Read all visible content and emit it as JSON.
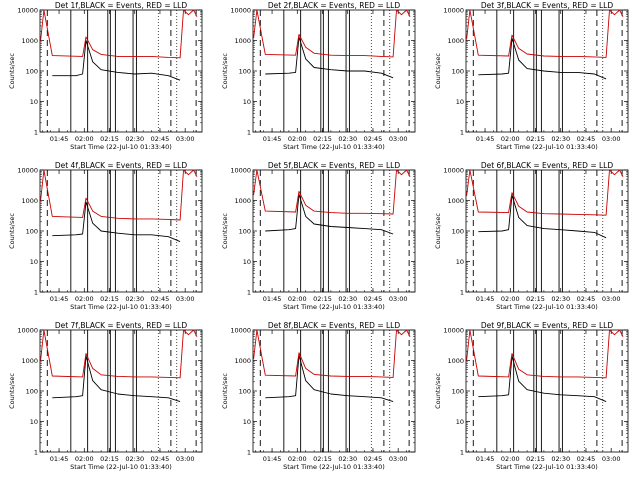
{
  "chart_data": [
    {
      "type": "line",
      "title": "Det 1f,BLACK = Events, RED = LLD",
      "xlabel": "Start Time (22-Jul-10 01:33:40)",
      "ylabel": "Counts/sec",
      "x_tick_labels": [
        "01:45",
        "02:00",
        "02:15",
        "02:30",
        "02:45",
        "03:00"
      ],
      "y_tick_labels": [
        "1",
        "10",
        "100",
        "1000",
        "10000"
      ],
      "ylim": [
        1,
        10000
      ],
      "yscale": "log",
      "series": [
        {
          "name": "Events",
          "color": "#000000",
          "x": [
            "01:41",
            "01:55",
            "01:59",
            "02:01",
            "02:05",
            "02:10",
            "02:20",
            "02:30",
            "02:40",
            "02:50",
            "02:57"
          ],
          "y": [
            70,
            70,
            80,
            1000,
            200,
            110,
            90,
            80,
            85,
            70,
            50
          ]
        },
        {
          "name": "LLD",
          "color": "#cc0000",
          "x": [
            "01:34",
            "01:36",
            "01:41",
            "01:59",
            "02:01",
            "02:05",
            "02:10",
            "02:20",
            "02:30",
            "02:40",
            "02:50",
            "02:57",
            "02:59",
            "03:02",
            "03:05",
            "03:07"
          ],
          "y": [
            1000,
            10000,
            320,
            300,
            1300,
            500,
            350,
            300,
            300,
            300,
            280,
            270,
            10000,
            7000,
            10000,
            6000
          ]
        }
      ]
    },
    {
      "type": "line",
      "title": "Det 2f,BLACK = Events, RED = LLD",
      "xlabel": "Start Time (22-Jul-10 01:33:40)",
      "ylabel": "Counts/sec",
      "x_tick_labels": [
        "01:45",
        "02:00",
        "02:15",
        "02:30",
        "02:45",
        "03:00"
      ],
      "y_tick_labels": [
        "1",
        "10",
        "100",
        "1000",
        "10000"
      ],
      "ylim": [
        1,
        10000
      ],
      "yscale": "log",
      "series": [
        {
          "name": "Events",
          "color": "#000000",
          "x": [
            "01:41",
            "01:55",
            "01:59",
            "02:01",
            "02:05",
            "02:10",
            "02:20",
            "02:30",
            "02:40",
            "02:50",
            "02:57"
          ],
          "y": [
            80,
            85,
            90,
            1300,
            250,
            130,
            110,
            100,
            100,
            85,
            60
          ]
        },
        {
          "name": "LLD",
          "color": "#cc0000",
          "x": [
            "01:34",
            "01:36",
            "01:41",
            "01:59",
            "02:01",
            "02:05",
            "02:10",
            "02:20",
            "02:30",
            "02:40",
            "02:50",
            "02:57",
            "02:59",
            "03:02",
            "03:05",
            "03:07"
          ],
          "y": [
            1200,
            10000,
            350,
            330,
            1600,
            600,
            380,
            330,
            320,
            320,
            300,
            290,
            10000,
            7000,
            10000,
            6000
          ]
        }
      ]
    },
    {
      "type": "line",
      "title": "Det 3f,BLACK = Events, RED = LLD",
      "xlabel": "Start Time (22-Jul-10 01:33:40)",
      "ylabel": "Counts/sec",
      "x_tick_labels": [
        "01:45",
        "02:00",
        "02:15",
        "02:30",
        "02:45",
        "03:00"
      ],
      "y_tick_labels": [
        "1",
        "10",
        "100",
        "1000",
        "10000"
      ],
      "ylim": [
        1,
        10000
      ],
      "yscale": "log",
      "series": [
        {
          "name": "Events",
          "color": "#000000",
          "x": [
            "01:41",
            "01:55",
            "01:59",
            "02:01",
            "02:05",
            "02:10",
            "02:20",
            "02:30",
            "02:40",
            "02:50",
            "02:57"
          ],
          "y": [
            75,
            80,
            85,
            1200,
            230,
            120,
            100,
            90,
            90,
            80,
            55
          ]
        },
        {
          "name": "LLD",
          "color": "#cc0000",
          "x": [
            "01:34",
            "01:36",
            "01:41",
            "01:59",
            "02:01",
            "02:05",
            "02:10",
            "02:20",
            "02:30",
            "02:40",
            "02:50",
            "02:57",
            "02:59",
            "03:02",
            "03:05",
            "03:07"
          ],
          "y": [
            1100,
            10000,
            330,
            310,
            1500,
            550,
            360,
            310,
            300,
            300,
            290,
            280,
            10000,
            7000,
            10000,
            6000
          ]
        }
      ]
    },
    {
      "type": "line",
      "title": "Det 4f,BLACK = Events, RED = LLD",
      "xlabel": "Start Time (22-Jul-10 01:33:40)",
      "ylabel": "Counts/sec",
      "x_tick_labels": [
        "01:45",
        "02:00",
        "02:15",
        "02:30",
        "02:45",
        "03:00"
      ],
      "y_tick_labels": [
        "1",
        "10",
        "100",
        "1000",
        "10000"
      ],
      "ylim": [
        1,
        10000
      ],
      "yscale": "log",
      "series": [
        {
          "name": "Events",
          "color": "#000000",
          "x": [
            "01:41",
            "01:55",
            "01:59",
            "02:01",
            "02:05",
            "02:10",
            "02:20",
            "02:30",
            "02:40",
            "02:50",
            "02:57"
          ],
          "y": [
            70,
            75,
            80,
            900,
            180,
            100,
            85,
            75,
            75,
            65,
            45
          ]
        },
        {
          "name": "LLD",
          "color": "#cc0000",
          "x": [
            "01:34",
            "01:36",
            "01:41",
            "01:59",
            "02:01",
            "02:05",
            "02:10",
            "02:20",
            "02:30",
            "02:40",
            "02:50",
            "02:57",
            "02:59",
            "03:02",
            "03:05",
            "03:07"
          ],
          "y": [
            1000,
            10000,
            300,
            280,
            1200,
            450,
            300,
            260,
            250,
            250,
            240,
            230,
            10000,
            7000,
            10000,
            6000
          ]
        }
      ]
    },
    {
      "type": "line",
      "title": "Det 5f,BLACK = Events, RED = LLD",
      "xlabel": "Start Time (22-Jul-10 01:33:40)",
      "ylabel": "Counts/sec",
      "x_tick_labels": [
        "01:45",
        "02:00",
        "02:15",
        "02:30",
        "02:45",
        "03:00"
      ],
      "y_tick_labels": [
        "1",
        "10",
        "100",
        "1000",
        "10000"
      ],
      "ylim": [
        1,
        10000
      ],
      "yscale": "log",
      "series": [
        {
          "name": "Events",
          "color": "#000000",
          "x": [
            "01:41",
            "01:55",
            "01:59",
            "02:01",
            "02:05",
            "02:10",
            "02:20",
            "02:30",
            "02:40",
            "02:50",
            "02:57"
          ],
          "y": [
            100,
            110,
            120,
            1600,
            300,
            170,
            140,
            130,
            120,
            110,
            80
          ]
        },
        {
          "name": "LLD",
          "color": "#cc0000",
          "x": [
            "01:34",
            "01:36",
            "01:41",
            "01:59",
            "02:01",
            "02:05",
            "02:10",
            "02:20",
            "02:30",
            "02:40",
            "02:50",
            "02:57",
            "02:59",
            "03:02",
            "03:05",
            "03:07"
          ],
          "y": [
            1500,
            10000,
            450,
            420,
            2000,
            700,
            450,
            400,
            380,
            380,
            370,
            360,
            10000,
            7000,
            10000,
            6000
          ]
        }
      ]
    },
    {
      "type": "line",
      "title": "Det 6f,BLACK = Events, RED = LLD",
      "xlabel": "Start Time (22-Jul-10 01:33:40)",
      "ylabel": "Counts/sec",
      "x_tick_labels": [
        "01:45",
        "02:00",
        "02:15",
        "02:30",
        "02:45",
        "03:00"
      ],
      "y_tick_labels": [
        "1",
        "10",
        "100",
        "1000",
        "10000"
      ],
      "ylim": [
        1,
        10000
      ],
      "yscale": "log",
      "series": [
        {
          "name": "Events",
          "color": "#000000",
          "x": [
            "01:41",
            "01:55",
            "01:59",
            "02:01",
            "02:05",
            "02:10",
            "02:20",
            "02:30",
            "02:40",
            "02:50",
            "02:57"
          ],
          "y": [
            95,
            100,
            110,
            1500,
            280,
            150,
            120,
            110,
            100,
            90,
            60
          ]
        },
        {
          "name": "LLD",
          "color": "#cc0000",
          "x": [
            "01:34",
            "01:36",
            "01:41",
            "01:59",
            "02:01",
            "02:05",
            "02:10",
            "02:20",
            "02:30",
            "02:40",
            "02:50",
            "02:57",
            "02:59",
            "03:02",
            "03:05",
            "03:07"
          ],
          "y": [
            1400,
            10000,
            420,
            400,
            1800,
            650,
            420,
            370,
            360,
            350,
            340,
            330,
            10000,
            7000,
            10000,
            6000
          ]
        }
      ]
    },
    {
      "type": "line",
      "title": "Det 7f,BLACK = Events, RED = LLD",
      "xlabel": "Start Time (22-Jul-10 01:33:40)",
      "ylabel": "Counts/sec",
      "x_tick_labels": [
        "01:45",
        "02:00",
        "02:15",
        "02:30",
        "02:45",
        "03:00"
      ],
      "y_tick_labels": [
        "1",
        "10",
        "100",
        "1000",
        "10000"
      ],
      "ylim": [
        1,
        10000
      ],
      "yscale": "log",
      "series": [
        {
          "name": "Events",
          "color": "#000000",
          "x": [
            "01:41",
            "01:55",
            "01:59",
            "02:01",
            "02:05",
            "02:10",
            "02:20",
            "02:30",
            "02:40",
            "02:50",
            "02:57"
          ],
          "y": [
            60,
            65,
            70,
            1400,
            220,
            110,
            80,
            70,
            65,
            60,
            45
          ]
        },
        {
          "name": "LLD",
          "color": "#cc0000",
          "x": [
            "01:34",
            "01:36",
            "01:41",
            "01:59",
            "02:01",
            "02:05",
            "02:10",
            "02:20",
            "02:30",
            "02:40",
            "02:50",
            "02:57",
            "02:59",
            "03:02",
            "03:05",
            "03:07"
          ],
          "y": [
            1000,
            10000,
            310,
            290,
            1700,
            550,
            340,
            300,
            290,
            290,
            280,
            270,
            10000,
            7000,
            10000,
            6000
          ]
        }
      ]
    },
    {
      "type": "line",
      "title": "Det 8f,BLACK = Events, RED = LLD",
      "xlabel": "Start Time (22-Jul-10 01:33:40)",
      "ylabel": "Counts/sec",
      "x_tick_labels": [
        "01:45",
        "02:00",
        "02:15",
        "02:30",
        "02:45",
        "03:00"
      ],
      "y_tick_labels": [
        "1",
        "10",
        "100",
        "1000",
        "10000"
      ],
      "ylim": [
        1,
        10000
      ],
      "yscale": "log",
      "series": [
        {
          "name": "Events",
          "color": "#000000",
          "x": [
            "01:41",
            "01:55",
            "01:59",
            "02:01",
            "02:05",
            "02:10",
            "02:20",
            "02:30",
            "02:40",
            "02:50",
            "02:57"
          ],
          "y": [
            60,
            65,
            70,
            1500,
            220,
            110,
            80,
            70,
            65,
            60,
            45
          ]
        },
        {
          "name": "LLD",
          "color": "#cc0000",
          "x": [
            "01:34",
            "01:36",
            "01:41",
            "01:59",
            "02:01",
            "02:05",
            "02:10",
            "02:20",
            "02:30",
            "02:40",
            "02:50",
            "02:57",
            "02:59",
            "03:02",
            "03:05",
            "03:07"
          ],
          "y": [
            1100,
            10000,
            330,
            310,
            1800,
            550,
            350,
            310,
            300,
            300,
            290,
            280,
            10000,
            7000,
            10000,
            6000
          ]
        }
      ]
    },
    {
      "type": "line",
      "title": "Det 9f,BLACK = Events, RED = LLD",
      "xlabel": "Start Time (22-Jul-10 01:33:40)",
      "ylabel": "Counts/sec",
      "x_tick_labels": [
        "01:45",
        "02:00",
        "02:15",
        "02:30",
        "02:45",
        "03:00"
      ],
      "y_tick_labels": [
        "1",
        "10",
        "100",
        "1000",
        "10000"
      ],
      "ylim": [
        1,
        10000
      ],
      "yscale": "log",
      "series": [
        {
          "name": "Events",
          "color": "#000000",
          "x": [
            "01:41",
            "01:55",
            "01:59",
            "02:01",
            "02:05",
            "02:10",
            "02:20",
            "02:30",
            "02:40",
            "02:50",
            "02:57"
          ],
          "y": [
            65,
            70,
            75,
            1400,
            210,
            110,
            85,
            75,
            70,
            65,
            45
          ]
        },
        {
          "name": "LLD",
          "color": "#cc0000",
          "x": [
            "01:34",
            "01:36",
            "01:41",
            "01:59",
            "02:01",
            "02:05",
            "02:10",
            "02:20",
            "02:30",
            "02:40",
            "02:50",
            "02:57",
            "02:59",
            "03:02",
            "03:05",
            "03:07"
          ],
          "y": [
            1000,
            10000,
            310,
            290,
            1700,
            520,
            340,
            300,
            290,
            290,
            280,
            270,
            10000,
            7000,
            10000,
            6000
          ]
        }
      ]
    }
  ]
}
